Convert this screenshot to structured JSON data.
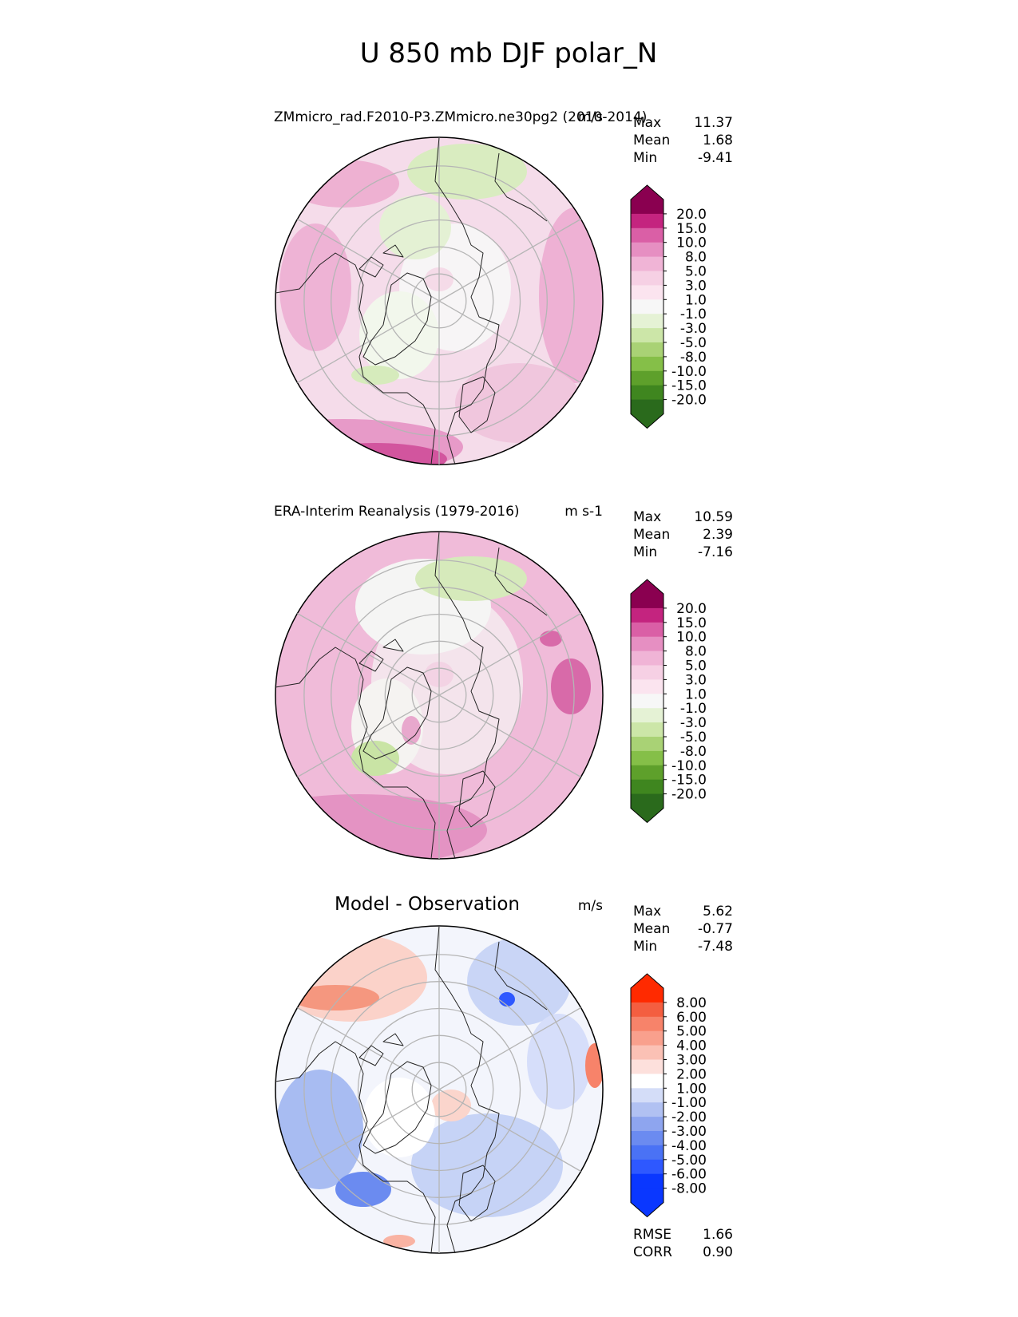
{
  "title": "U 850 mb DJF polar_N",
  "colors": {
    "model_obs_levels": [
      "#2a6a1c",
      "#3f861f",
      "#5ea02b",
      "#85bf48",
      "#a9d275",
      "#cce6a8",
      "#e5f2d5",
      "#f7f7f7",
      "#fbe4ef",
      "#f6d0e4",
      "#f0b4d6",
      "#e68fc2",
      "#da5fa6",
      "#c4247f",
      "#8a0050"
    ],
    "diff_levels": [
      "#0a37ff",
      "#2e58ff",
      "#4a72f5",
      "#6b8bf0",
      "#8ea5ef",
      "#b1c1f2",
      "#d4ddf8",
      "#ffffff",
      "#fde0dc",
      "#fbc1b5",
      "#f9a08d",
      "#f7836a",
      "#f45e40",
      "#ff2a00"
    ]
  },
  "chart_data": [
    {
      "type": "heatmap",
      "name": "test",
      "title": "ZMmicro_rad.F2010-P3.ZMmicro.ne30pg2 (2010-2014)",
      "units": "m/s",
      "stats": [
        {
          "label": "Max",
          "value": "11.37"
        },
        {
          "label": "Mean",
          "value": "1.68"
        },
        {
          "label": "Min",
          "value": "-9.41"
        }
      ],
      "colorbar_ticks": [
        "20.0",
        "15.0",
        "10.0",
        "8.0",
        "5.0",
        "3.0",
        "1.0",
        "-1.0",
        "-3.0",
        "-5.0",
        "-8.0",
        "-10.0",
        "-15.0",
        "-20.0"
      ],
      "colormap": "model_obs_levels"
    },
    {
      "type": "heatmap",
      "name": "reference",
      "title": "ERA-Interim Reanalysis (1979-2016)",
      "units": "m s-1",
      "stats": [
        {
          "label": "Max",
          "value": "10.59"
        },
        {
          "label": "Mean",
          "value": "2.39"
        },
        {
          "label": "Min",
          "value": "-7.16"
        }
      ],
      "colorbar_ticks": [
        "20.0",
        "15.0",
        "10.0",
        "8.0",
        "5.0",
        "3.0",
        "1.0",
        "-1.0",
        "-3.0",
        "-5.0",
        "-8.0",
        "-10.0",
        "-15.0",
        "-20.0"
      ],
      "colormap": "model_obs_levels"
    },
    {
      "type": "heatmap",
      "name": "difference",
      "title": "Model - Observation",
      "units": "m/s",
      "stats": [
        {
          "label": "Max",
          "value": "5.62"
        },
        {
          "label": "Mean",
          "value": "-0.77"
        },
        {
          "label": "Min",
          "value": "-7.48"
        }
      ],
      "extra_stats": [
        {
          "label": "RMSE",
          "value": "1.66"
        },
        {
          "label": "CORR",
          "value": "0.90"
        }
      ],
      "colorbar_ticks": [
        "8.00",
        "6.00",
        "5.00",
        "4.00",
        "3.00",
        "2.00",
        "1.00",
        "-1.00",
        "-2.00",
        "-3.00",
        "-4.00",
        "-5.00",
        "-6.00",
        "-8.00"
      ],
      "colormap": "diff_levels"
    }
  ]
}
